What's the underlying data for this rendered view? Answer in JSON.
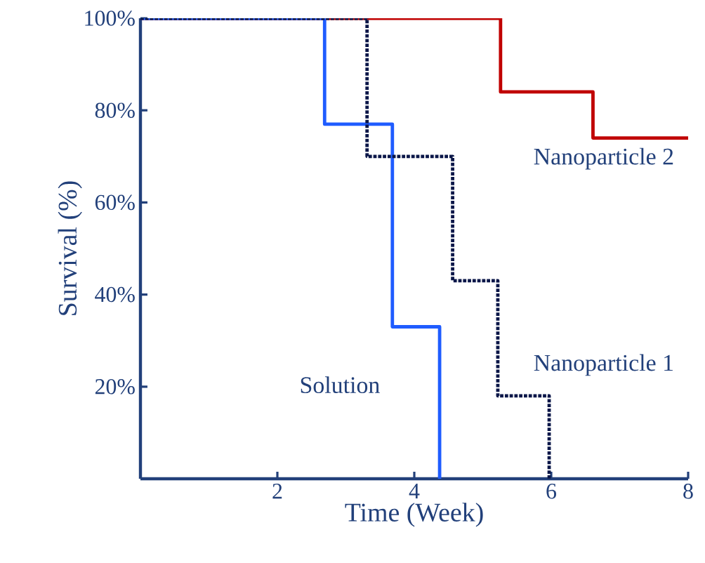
{
  "chart_data": {
    "type": "step",
    "xlabel": "Time (Week)",
    "ylabel": "Survival (%)",
    "xlim": [
      0,
      8
    ],
    "xticks": [
      2,
      4,
      6,
      8
    ],
    "ylim": [
      0,
      100
    ],
    "yticks": [
      {
        "value": 20,
        "label": "20%"
      },
      {
        "value": 40,
        "label": "40%"
      },
      {
        "value": 60,
        "label": "60%"
      },
      {
        "value": 80,
        "label": "80%"
      },
      {
        "value": 100,
        "label": "100%"
      }
    ],
    "grid": false,
    "legend": false,
    "marker": "none",
    "series": [
      {
        "name": "Nanoparticle 2",
        "color": "#c00000",
        "line_style": "solid",
        "x": [
          0,
          5.26,
          6.61,
          8
        ],
        "values": [
          100,
          84,
          74,
          74
        ]
      },
      {
        "name": "Solution",
        "color": "#1f5cff",
        "line_style": "solid",
        "x": [
          0,
          2.69,
          3.68,
          4.37
        ],
        "values": [
          100,
          77,
          33,
          0
        ]
      },
      {
        "name": "Nanoparticle 1",
        "color": "#0a1648",
        "line_style": "dotted",
        "x": [
          0,
          3.31,
          4.56,
          5.22,
          5.97
        ],
        "values": [
          100,
          70,
          43,
          18,
          0
        ]
      }
    ]
  }
}
